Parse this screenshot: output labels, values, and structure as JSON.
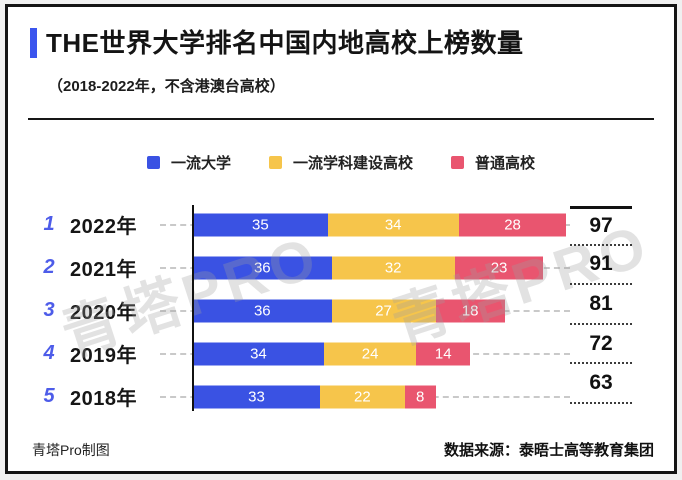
{
  "title": {
    "text": "THE世界大学排名中国内地高校上榜数量",
    "subtitle": "（2018-2022年，不含港澳台高校）"
  },
  "legend": [
    {
      "label": "一流大学",
      "color": "#3a52e3"
    },
    {
      "label": "一流学科建设高校",
      "color": "#f6c54b"
    },
    {
      "label": "普通高校",
      "color": "#e9556f"
    }
  ],
  "chart_data": {
    "type": "bar",
    "orientation": "horizontal",
    "stacked": true,
    "categories": [
      "2022年",
      "2021年",
      "2020年",
      "2019年",
      "2018年"
    ],
    "ranks": [
      "1",
      "2",
      "3",
      "4",
      "5"
    ],
    "series": [
      {
        "name": "一流大学",
        "color": "#3a52e3",
        "values": [
          35,
          36,
          36,
          34,
          33
        ]
      },
      {
        "name": "一流学科建设高校",
        "color": "#f6c54b",
        "values": [
          34,
          32,
          27,
          24,
          22
        ]
      },
      {
        "name": "普通高校",
        "color": "#e9556f",
        "values": [
          28,
          23,
          18,
          14,
          8
        ]
      }
    ],
    "totals": [
      97,
      91,
      81,
      72,
      63
    ],
    "xlim": [
      0,
      97
    ],
    "legend_position": "top",
    "grid": false
  },
  "watermark": "青塔PRO",
  "footer": {
    "left": "青塔Pro制图",
    "right": "数据来源：泰晤士高等教育集团"
  },
  "colors": {
    "accent": "#3b55ee",
    "rank": "#4d5ce9",
    "axis": "#111111"
  }
}
